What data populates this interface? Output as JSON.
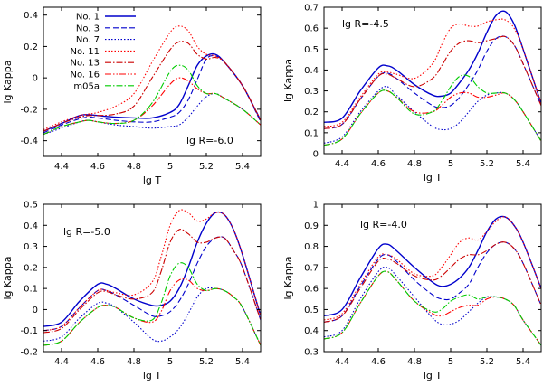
{
  "chart_data": [
    {
      "type": "line",
      "annotation": "lg R=-6.0",
      "xlabel": "lg T",
      "ylabel": "lg Kappa",
      "xlim": [
        4.3,
        5.5
      ],
      "ylim": [
        -0.5,
        0.45
      ],
      "xticks": [
        4.4,
        4.6,
        4.8,
        5,
        5.2,
        5.4
      ],
      "xtick_labels": [
        "4.4",
        "4.6",
        "4.8",
        "5",
        "5.2",
        "5.4"
      ],
      "yticks": [
        -0.4,
        -0.2,
        0,
        0.2,
        0.4
      ],
      "ytick_labels": [
        "-0.4",
        "-0.2",
        "0",
        "0.2",
        "0.4"
      ],
      "legend": "top-left",
      "x": [
        4.3,
        4.4,
        4.5,
        4.55,
        4.6,
        4.7,
        4.8,
        4.9,
        5.0,
        5.05,
        5.1,
        5.15,
        5.2,
        5.25,
        5.3,
        5.4,
        5.5
      ],
      "series": [
        {
          "name": "No. 1",
          "color": "#0000cc",
          "style": "solid",
          "values": [
            -0.34,
            -0.29,
            -0.24,
            -0.235,
            -0.24,
            -0.25,
            -0.255,
            -0.255,
            -0.22,
            -0.17,
            -0.05,
            0.08,
            0.14,
            0.15,
            0.1,
            -0.05,
            -0.27
          ]
        },
        {
          "name": "No. 3",
          "color": "#0000cc",
          "style": "dash",
          "values": [
            -0.35,
            -0.3,
            -0.26,
            -0.25,
            -0.255,
            -0.27,
            -0.28,
            -0.28,
            -0.25,
            -0.22,
            -0.14,
            -0.01,
            0.12,
            0.14,
            0.1,
            -0.05,
            -0.28
          ]
        },
        {
          "name": "No. 7",
          "color": "#0000cc",
          "style": "dot",
          "values": [
            -0.36,
            -0.32,
            -0.28,
            -0.27,
            -0.28,
            -0.3,
            -0.31,
            -0.32,
            -0.31,
            -0.3,
            -0.25,
            -0.18,
            -0.12,
            -0.1,
            -0.13,
            -0.2,
            -0.3
          ]
        },
        {
          "name": "No. 11",
          "color": "#ff0000",
          "style": "dot",
          "values": [
            -0.33,
            -0.28,
            -0.24,
            -0.23,
            -0.22,
            -0.18,
            -0.1,
            0.1,
            0.29,
            0.33,
            0.3,
            0.2,
            0.15,
            0.14,
            0.1,
            -0.05,
            -0.27
          ]
        },
        {
          "name": "No. 13",
          "color": "#cc0000",
          "style": "dashdot",
          "values": [
            -0.34,
            -0.29,
            -0.25,
            -0.24,
            -0.24,
            -0.23,
            -0.18,
            0.0,
            0.18,
            0.23,
            0.22,
            0.15,
            0.12,
            0.13,
            0.1,
            -0.05,
            -0.27
          ]
        },
        {
          "name": "No. 16",
          "color": "#ff0000",
          "style": "dashdotdot",
          "values": [
            -0.36,
            -0.31,
            -0.28,
            -0.27,
            -0.28,
            -0.29,
            -0.27,
            -0.18,
            -0.04,
            0.0,
            -0.02,
            -0.07,
            -0.1,
            -0.1,
            -0.13,
            -0.2,
            -0.3
          ]
        },
        {
          "name": "m05a",
          "color": "#00cc00",
          "style": "dashdot",
          "values": [
            -0.36,
            -0.31,
            -0.28,
            -0.27,
            -0.28,
            -0.29,
            -0.27,
            -0.16,
            0.04,
            0.08,
            0.05,
            -0.05,
            -0.1,
            -0.1,
            -0.13,
            -0.2,
            -0.3
          ]
        }
      ]
    },
    {
      "type": "line",
      "annotation": "lg R=-4.5",
      "xlabel": "lg T",
      "ylabel": "lg Kappa",
      "xlim": [
        4.3,
        5.5
      ],
      "ylim": [
        0,
        0.7
      ],
      "xticks": [
        4.4,
        4.6,
        4.8,
        5,
        5.2,
        5.4
      ],
      "xtick_labels": [
        "4.4",
        "4.6",
        "4.8",
        "5",
        "5.2",
        "5.4"
      ],
      "yticks": [
        0,
        0.1,
        0.2,
        0.3,
        0.4,
        0.5,
        0.6,
        0.7
      ],
      "ytick_labels": [
        "0",
        "0.1",
        "0.2",
        "0.3",
        "0.4",
        "0.5",
        "0.6",
        "0.7"
      ],
      "x": [
        4.3,
        4.4,
        4.5,
        4.6,
        4.65,
        4.7,
        4.8,
        4.9,
        4.95,
        5.0,
        5.05,
        5.1,
        5.15,
        5.2,
        5.25,
        5.3,
        5.35,
        5.4,
        5.5
      ],
      "series": [
        {
          "name": "No. 1",
          "color": "#0000cc",
          "style": "solid",
          "values": [
            0.15,
            0.17,
            0.3,
            0.41,
            0.42,
            0.4,
            0.33,
            0.28,
            0.275,
            0.29,
            0.34,
            0.4,
            0.48,
            0.58,
            0.66,
            0.68,
            0.62,
            0.5,
            0.24
          ]
        },
        {
          "name": "No. 3",
          "color": "#0000cc",
          "style": "dash",
          "values": [
            0.12,
            0.14,
            0.26,
            0.37,
            0.385,
            0.36,
            0.29,
            0.23,
            0.22,
            0.23,
            0.27,
            0.33,
            0.4,
            0.49,
            0.55,
            0.56,
            0.52,
            0.43,
            0.23
          ]
        },
        {
          "name": "No. 7",
          "color": "#0000cc",
          "style": "dot",
          "values": [
            0.05,
            0.08,
            0.2,
            0.3,
            0.32,
            0.28,
            0.2,
            0.13,
            0.115,
            0.12,
            0.15,
            0.2,
            0.25,
            0.28,
            0.29,
            0.29,
            0.26,
            0.2,
            0.06
          ]
        },
        {
          "name": "No. 11",
          "color": "#ff0000",
          "style": "dot",
          "values": [
            0.13,
            0.15,
            0.27,
            0.38,
            0.39,
            0.38,
            0.36,
            0.43,
            0.52,
            0.6,
            0.62,
            0.61,
            0.61,
            0.63,
            0.64,
            0.64,
            0.6,
            0.5,
            0.24
          ]
        },
        {
          "name": "No. 13",
          "color": "#cc0000",
          "style": "dashdot",
          "values": [
            0.12,
            0.14,
            0.26,
            0.37,
            0.38,
            0.36,
            0.32,
            0.36,
            0.42,
            0.49,
            0.53,
            0.54,
            0.53,
            0.54,
            0.55,
            0.56,
            0.52,
            0.43,
            0.23
          ]
        },
        {
          "name": "No. 16",
          "color": "#ff0000",
          "style": "dashdotdot",
          "values": [
            0.04,
            0.07,
            0.19,
            0.29,
            0.3,
            0.27,
            0.2,
            0.2,
            0.23,
            0.27,
            0.29,
            0.29,
            0.27,
            0.27,
            0.28,
            0.29,
            0.26,
            0.2,
            0.06
          ]
        },
        {
          "name": "m05a",
          "color": "#00cc00",
          "style": "dashdot",
          "values": [
            0.04,
            0.07,
            0.19,
            0.29,
            0.3,
            0.27,
            0.19,
            0.2,
            0.25,
            0.32,
            0.37,
            0.37,
            0.32,
            0.29,
            0.29,
            0.29,
            0.26,
            0.2,
            0.06
          ]
        }
      ]
    },
    {
      "type": "line",
      "annotation": "lg R=-5.0",
      "xlabel": "lg T",
      "ylabel": "lg Kappa",
      "xlim": [
        4.3,
        5.5
      ],
      "ylim": [
        -0.2,
        0.5
      ],
      "xticks": [
        4.4,
        4.6,
        4.8,
        5,
        5.2,
        5.4
      ],
      "xtick_labels": [
        "4.4",
        "4.6",
        "4.8",
        "5",
        "5.2",
        "5.4"
      ],
      "yticks": [
        -0.2,
        -0.1,
        0,
        0.1,
        0.2,
        0.3,
        0.4,
        0.5
      ],
      "ytick_labels": [
        "-0.2",
        "-0.1",
        "0",
        "0.1",
        "0.2",
        "0.3",
        "0.4",
        "0.5"
      ],
      "x": [
        4.3,
        4.4,
        4.5,
        4.6,
        4.65,
        4.7,
        4.8,
        4.9,
        4.95,
        5.0,
        5.05,
        5.1,
        5.15,
        5.2,
        5.25,
        5.3,
        5.35,
        5.4,
        5.5
      ],
      "series": [
        {
          "name": "No. 1",
          "color": "#0000cc",
          "style": "solid",
          "values": [
            -0.08,
            -0.06,
            0.04,
            0.12,
            0.12,
            0.1,
            0.05,
            0.02,
            0.02,
            0.04,
            0.1,
            0.2,
            0.32,
            0.41,
            0.46,
            0.45,
            0.38,
            0.26,
            -0.03
          ]
        },
        {
          "name": "No. 3",
          "color": "#0000cc",
          "style": "dash",
          "values": [
            -0.1,
            -0.08,
            0.01,
            0.09,
            0.09,
            0.07,
            0.02,
            -0.03,
            -0.03,
            -0.01,
            0.04,
            0.12,
            0.22,
            0.3,
            0.34,
            0.34,
            0.28,
            0.2,
            -0.05
          ]
        },
        {
          "name": "No. 7",
          "color": "#0000cc",
          "style": "dot",
          "values": [
            -0.15,
            -0.13,
            -0.04,
            0.03,
            0.03,
            0.01,
            -0.06,
            -0.14,
            -0.15,
            -0.13,
            -0.09,
            -0.02,
            0.06,
            0.1,
            0.1,
            0.09,
            0.06,
            0.01,
            -0.17
          ]
        },
        {
          "name": "No. 11",
          "color": "#ff0000",
          "style": "dot",
          "values": [
            -0.1,
            -0.08,
            0.01,
            0.09,
            0.09,
            0.08,
            0.07,
            0.13,
            0.25,
            0.4,
            0.47,
            0.46,
            0.42,
            0.43,
            0.46,
            0.45,
            0.38,
            0.26,
            -0.03
          ]
        },
        {
          "name": "No. 13",
          "color": "#cc0000",
          "style": "dashdot",
          "values": [
            -0.11,
            -0.09,
            0.0,
            0.08,
            0.085,
            0.07,
            0.05,
            0.08,
            0.18,
            0.32,
            0.38,
            0.36,
            0.32,
            0.32,
            0.34,
            0.34,
            0.28,
            0.2,
            -0.05
          ]
        },
        {
          "name": "No. 16",
          "color": "#ff0000",
          "style": "dashdotdot",
          "values": [
            -0.17,
            -0.15,
            -0.06,
            0.01,
            0.02,
            0.01,
            -0.04,
            -0.06,
            -0.01,
            0.09,
            0.14,
            0.14,
            0.1,
            0.09,
            0.1,
            0.09,
            0.06,
            0.01,
            -0.17
          ]
        },
        {
          "name": "m05a",
          "color": "#00cc00",
          "style": "dashdot",
          "values": [
            -0.17,
            -0.15,
            -0.06,
            0.01,
            0.02,
            0.01,
            -0.04,
            -0.05,
            0.03,
            0.16,
            0.22,
            0.2,
            0.12,
            0.09,
            0.1,
            0.09,
            0.06,
            0.01,
            -0.17
          ]
        }
      ]
    },
    {
      "type": "line",
      "annotation": "lg R=-4.0",
      "xlabel": "lg T",
      "ylabel": "lg Kappa",
      "xlim": [
        4.3,
        5.5
      ],
      "ylim": [
        0.3,
        1.0
      ],
      "xticks": [
        4.4,
        4.6,
        4.8,
        5,
        5.2,
        5.4
      ],
      "xtick_labels": [
        "4.4",
        "4.6",
        "4.8",
        "5",
        "5.2",
        "5.4"
      ],
      "yticks": [
        0.3,
        0.4,
        0.5,
        0.6,
        0.7,
        0.8,
        0.9,
        1.0
      ],
      "ytick_labels": [
        "0.3",
        "0.4",
        "0.5",
        "0.6",
        "0.7",
        "0.8",
        "0.9",
        "1"
      ],
      "x": [
        4.3,
        4.4,
        4.5,
        4.6,
        4.65,
        4.7,
        4.8,
        4.9,
        4.95,
        5.0,
        5.05,
        5.1,
        5.15,
        5.2,
        5.25,
        5.3,
        5.35,
        5.4,
        5.5
      ],
      "series": [
        {
          "name": "No. 1",
          "color": "#0000cc",
          "style": "solid",
          "values": [
            0.47,
            0.5,
            0.65,
            0.79,
            0.81,
            0.78,
            0.7,
            0.63,
            0.61,
            0.62,
            0.65,
            0.7,
            0.78,
            0.87,
            0.93,
            0.94,
            0.9,
            0.82,
            0.6
          ]
        },
        {
          "name": "No. 3",
          "color": "#0000cc",
          "style": "dash",
          "values": [
            0.44,
            0.47,
            0.61,
            0.74,
            0.76,
            0.73,
            0.64,
            0.57,
            0.55,
            0.55,
            0.58,
            0.62,
            0.7,
            0.77,
            0.81,
            0.82,
            0.79,
            0.72,
            0.52
          ]
        },
        {
          "name": "No. 7",
          "color": "#0000cc",
          "style": "dot",
          "values": [
            0.37,
            0.4,
            0.55,
            0.68,
            0.7,
            0.66,
            0.56,
            0.46,
            0.43,
            0.43,
            0.45,
            0.49,
            0.53,
            0.56,
            0.56,
            0.55,
            0.52,
            0.45,
            0.33
          ]
        },
        {
          "name": "No. 11",
          "color": "#ff0000",
          "style": "dot",
          "values": [
            0.45,
            0.48,
            0.62,
            0.75,
            0.76,
            0.74,
            0.67,
            0.66,
            0.7,
            0.76,
            0.82,
            0.84,
            0.83,
            0.87,
            0.92,
            0.94,
            0.9,
            0.82,
            0.6
          ]
        },
        {
          "name": "No. 13",
          "color": "#cc0000",
          "style": "dashdot",
          "values": [
            0.44,
            0.47,
            0.6,
            0.73,
            0.74,
            0.72,
            0.66,
            0.64,
            0.66,
            0.7,
            0.74,
            0.76,
            0.76,
            0.78,
            0.81,
            0.82,
            0.79,
            0.72,
            0.52
          ]
        },
        {
          "name": "No. 16",
          "color": "#ff0000",
          "style": "dashdotdot",
          "values": [
            0.36,
            0.39,
            0.53,
            0.66,
            0.68,
            0.64,
            0.54,
            0.48,
            0.47,
            0.49,
            0.51,
            0.52,
            0.52,
            0.55,
            0.56,
            0.55,
            0.52,
            0.45,
            0.33
          ]
        },
        {
          "name": "m05a",
          "color": "#00cc00",
          "style": "dashdot",
          "values": [
            0.36,
            0.39,
            0.53,
            0.66,
            0.68,
            0.64,
            0.54,
            0.49,
            0.5,
            0.54,
            0.56,
            0.57,
            0.55,
            0.56,
            0.56,
            0.55,
            0.52,
            0.45,
            0.33
          ]
        }
      ]
    }
  ]
}
